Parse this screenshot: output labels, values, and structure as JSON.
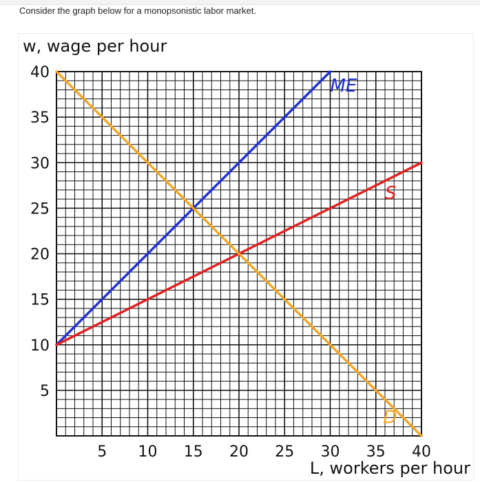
{
  "prompt": "Consider the graph below for a monopsonistic labor market.",
  "chart_data": {
    "type": "line",
    "ylabel": "w, wage per hour",
    "xlabel": "L, workers per hour",
    "xlim": [
      0,
      40
    ],
    "ylim": [
      0,
      40
    ],
    "grid": true,
    "grid_step": 1,
    "x_ticks": [
      5,
      10,
      15,
      20,
      25,
      30,
      35,
      40
    ],
    "y_ticks": [
      5,
      10,
      15,
      20,
      25,
      30,
      35,
      40
    ],
    "series": [
      {
        "name": "ME",
        "color": "#1f2fd6",
        "x": [
          0,
          30
        ],
        "y": [
          10,
          40
        ]
      },
      {
        "name": "S",
        "color": "#e02020",
        "x": [
          0,
          40
        ],
        "y": [
          10,
          30
        ]
      },
      {
        "name": "D",
        "color": "#f5a623",
        "x": [
          0,
          40
        ],
        "y": [
          40,
          0
        ]
      }
    ],
    "labels": [
      {
        "text": "ME",
        "x": 30,
        "y": 37.8,
        "color": "#1f2fd6"
      },
      {
        "text": "S",
        "x": 36,
        "y": 26,
        "color": "#e02020"
      },
      {
        "text": "D",
        "x": 35.8,
        "y": 1.4,
        "color": "#f5a623"
      }
    ]
  }
}
